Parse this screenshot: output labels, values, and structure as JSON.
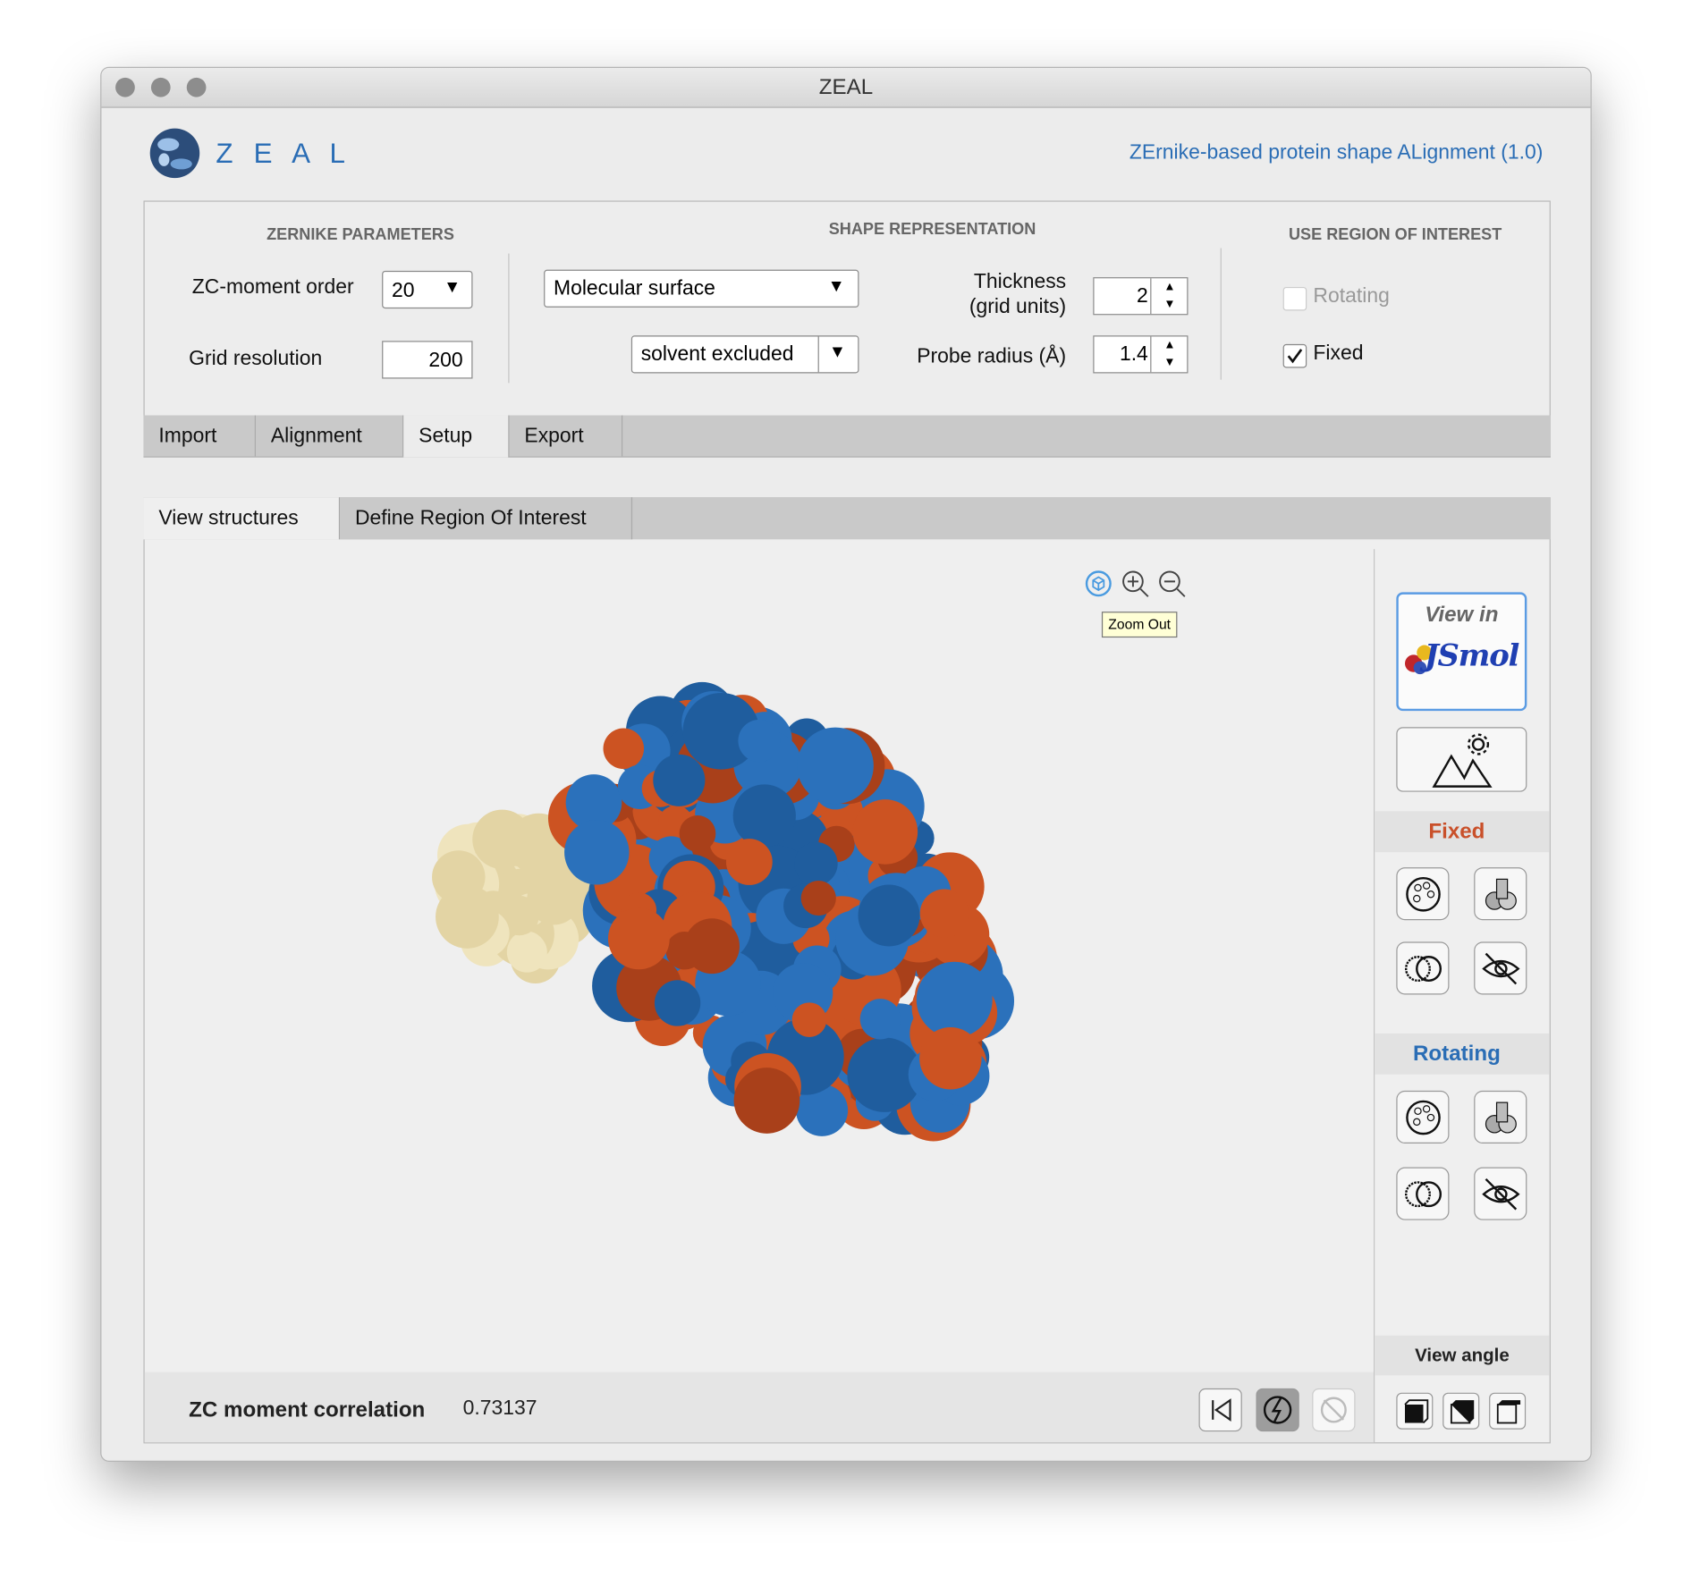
{
  "window": {
    "title": "ZEAL"
  },
  "header": {
    "logo": "Z E A L",
    "subtitle": "ZErnike-based protein shape ALignment (1.0)"
  },
  "zernike": {
    "heading": "ZERNIKE PARAMETERS",
    "order_label": "ZC-moment order",
    "order_value": "20",
    "grid_label": "Grid resolution",
    "grid_value": "200"
  },
  "shape": {
    "heading": "SHAPE REPRESENTATION",
    "surface": "Molecular surface",
    "mode": "solvent excluded",
    "thickness_label": [
      "Thickness",
      "(grid units)"
    ],
    "thickness_value": "2",
    "probe_label": "Probe radius (Å)",
    "probe_value": "1.4"
  },
  "roi": {
    "heading": "USE REGION OF INTEREST",
    "options": [
      {
        "label": "Rotating",
        "checked": false,
        "enabled": false
      },
      {
        "label": "Fixed",
        "checked": true,
        "enabled": true
      }
    ]
  },
  "tabs": {
    "items": [
      "Import",
      "Alignment",
      "Setup",
      "Export"
    ],
    "active": 2
  },
  "subtabs": {
    "items": [
      "View structures",
      "Define Region Of Interest"
    ],
    "active": 0
  },
  "viewer": {
    "tooltip": "Zoom Out"
  },
  "sidebar": {
    "view_in": "View in",
    "jsmol": "JSmol",
    "fixed": "Fixed",
    "rotating": "Rotating",
    "view_angle": "View angle"
  },
  "footer": {
    "label": "ZC moment correlation",
    "value": "0.73137"
  }
}
